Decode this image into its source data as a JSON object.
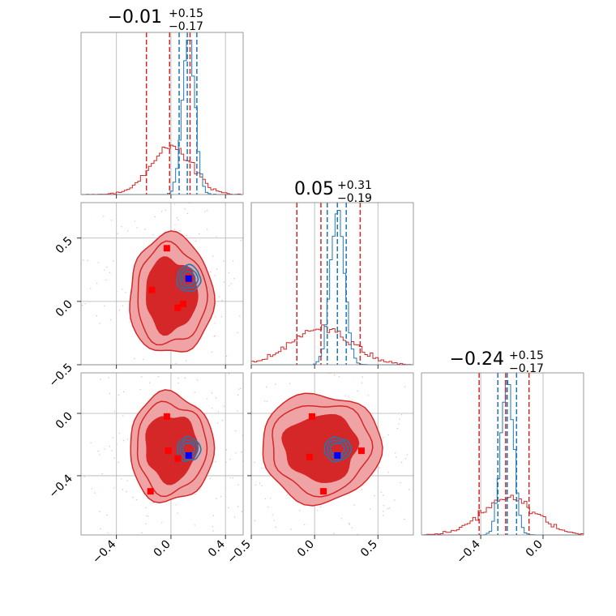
{
  "colors": {
    "red": "#d62728",
    "red_fill_light": "#efa3a5",
    "blue": "#1f77b4",
    "marker_red": "#ff0000",
    "marker_blue": "#0000ff",
    "grid": "#b0b0b0",
    "frame": "#808080"
  },
  "titles": {
    "p1": {
      "value": "−0.01",
      "plus": "+0.15",
      "minus": "−0.17"
    },
    "p2": {
      "value": "0.05",
      "plus": "+0.31",
      "minus": "−0.19"
    },
    "p3": {
      "value": "−0.24",
      "plus": "+0.15",
      "minus": "−0.17"
    }
  },
  "chart_data": {
    "type": "corner",
    "grid": true,
    "parameters": [
      "p1",
      "p2",
      "p3"
    ],
    "axes": {
      "p1": {
        "range": [
          -0.66,
          0.53
        ],
        "ticks": [
          -0.4,
          0.0,
          0.4
        ],
        "tick_labels": [
          "−0.4",
          "0.0",
          "0.4"
        ]
      },
      "p2": {
        "range": [
          -0.5,
          0.78
        ],
        "ticks": [
          -0.5,
          0.0,
          0.5
        ],
        "tick_labels": [
          "−0.5",
          "0.0",
          "0.5"
        ]
      },
      "p3": {
        "range": [
          -0.78,
          0.26
        ],
        "ticks": [
          -0.4,
          0.0
        ],
        "tick_labels": [
          "−0.4",
          "0.0"
        ]
      }
    },
    "series": [
      {
        "color": "#d62728",
        "quantiles": {
          "p1": [
            -0.18,
            -0.01,
            0.14
          ],
          "p2": [
            -0.14,
            0.05,
            0.36
          ],
          "p3": [
            -0.41,
            -0.24,
            -0.09
          ]
        },
        "centers": {
          "p1": 0.0,
          "p2": 0.05,
          "p3": -0.22
        },
        "sigmas": {
          "p1": 0.15,
          "p2": 0.23,
          "p3": 0.17
        }
      },
      {
        "color": "#1f77b4",
        "quantiles": {
          "p1": [
            0.06,
            0.12,
            0.19
          ],
          "p2": [
            0.1,
            0.18,
            0.25
          ],
          "p3": [
            -0.29,
            -0.23,
            -0.17
          ]
        },
        "centers": {
          "p1": 0.13,
          "p2": 0.18,
          "p3": -0.23
        },
        "sigmas": {
          "p1": 0.045,
          "p2": 0.055,
          "p3": 0.04
        }
      }
    ],
    "markers_red": {
      "p1_p2": [
        [
          -0.03,
          0.42
        ],
        [
          -0.14,
          0.09
        ],
        [
          0.09,
          -0.02
        ],
        [
          0.05,
          -0.05
        ]
      ],
      "p1_p3": [
        [
          -0.03,
          -0.02
        ],
        [
          -0.02,
          -0.24
        ],
        [
          -0.15,
          -0.5
        ],
        [
          0.05,
          -0.29
        ]
      ],
      "p2_p3": [
        [
          -0.02,
          -0.02
        ],
        [
          -0.04,
          -0.28
        ],
        [
          0.07,
          -0.5
        ],
        [
          0.37,
          -0.24
        ]
      ]
    },
    "markers_blue": {
      "p1_p2": [
        [
          0.13,
          0.18
        ]
      ],
      "p1_p3": [
        [
          0.13,
          -0.27
        ]
      ],
      "p2_p3": [
        [
          0.18,
          -0.27
        ]
      ]
    }
  }
}
